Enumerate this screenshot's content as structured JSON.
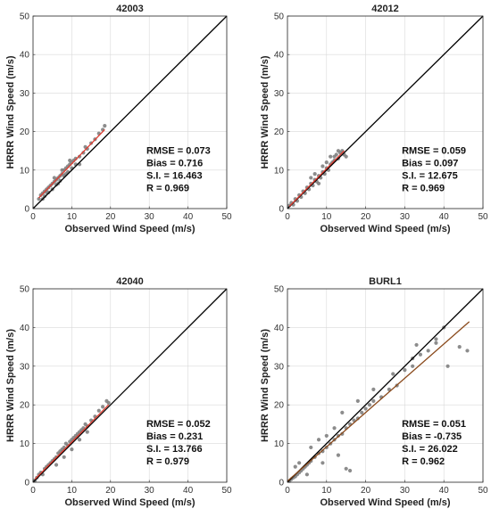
{
  "chart_data": [
    {
      "type": "scatter",
      "title": "42003",
      "xlabel": "Observed Wind Speed (m/s)",
      "ylabel": "HRRR Wind Speed (m/s)",
      "xlim": [
        0,
        50
      ],
      "ylim": [
        0,
        50
      ],
      "ticks": [
        0,
        10,
        20,
        30,
        40,
        50
      ],
      "grid": true,
      "point_color": "#7f7f7f",
      "reference_line": {
        "name": "1:1",
        "x": [
          0,
          50
        ],
        "y": [
          0,
          50
        ],
        "color": "#000000"
      },
      "fit_line": {
        "x": [
          1.5,
          18.5
        ],
        "y": [
          2.8,
          20.5
        ],
        "color": "#e03b2f"
      },
      "stats": [
        "RMSE = 0.073",
        "Bias = 0.716",
        "S.I. = 16.463",
        "R = 0.969"
      ],
      "points": [
        [
          1.5,
          2.5
        ],
        [
          2,
          3.5
        ],
        [
          2.5,
          4
        ],
        [
          3,
          3.2
        ],
        [
          3,
          4.5
        ],
        [
          3.5,
          5
        ],
        [
          4,
          4.2
        ],
        [
          4,
          5.5
        ],
        [
          4.5,
          6
        ],
        [
          5,
          5
        ],
        [
          5,
          6.5
        ],
        [
          5.5,
          7
        ],
        [
          6,
          6.2
        ],
        [
          6,
          7.5
        ],
        [
          6.5,
          8
        ],
        [
          7,
          7.2
        ],
        [
          7,
          8.5
        ],
        [
          7.5,
          9
        ],
        [
          8,
          8.5
        ],
        [
          8,
          10
        ],
        [
          8.5,
          10.5
        ],
        [
          9,
          9.5
        ],
        [
          9,
          11
        ],
        [
          9.5,
          11.5
        ],
        [
          10,
          10.5
        ],
        [
          10,
          12
        ],
        [
          10.5,
          12.5
        ],
        [
          11,
          11.5
        ],
        [
          11,
          13
        ],
        [
          12,
          13.5
        ],
        [
          13,
          14.5
        ],
        [
          14,
          15.5
        ],
        [
          15,
          17
        ],
        [
          16,
          18
        ],
        [
          17,
          19.5
        ],
        [
          18,
          20.5
        ],
        [
          18.5,
          21.5
        ],
        [
          2.5,
          2.5
        ],
        [
          3.5,
          4.2
        ],
        [
          5.5,
          8
        ],
        [
          6.5,
          6.5
        ],
        [
          7.5,
          10
        ],
        [
          8.5,
          9
        ],
        [
          9.5,
          12.5
        ],
        [
          12,
          11.5
        ],
        [
          13.5,
          16
        ]
      ]
    },
    {
      "type": "scatter",
      "title": "42012",
      "xlabel": "Observed Wind Speed (m/s)",
      "ylabel": "HRRR Wind Speed (m/s)",
      "xlim": [
        0,
        50
      ],
      "ylim": [
        0,
        50
      ],
      "ticks": [
        0,
        10,
        20,
        30,
        40,
        50
      ],
      "grid": true,
      "point_color": "#7f7f7f",
      "reference_line": {
        "name": "1:1",
        "x": [
          0,
          50
        ],
        "y": [
          0,
          50
        ],
        "color": "#000000"
      },
      "fit_line": {
        "x": [
          0.5,
          14.5
        ],
        "y": [
          0.6,
          15.0
        ],
        "color": "#e03b2f"
      },
      "stats": [
        "RMSE = 0.059",
        "Bias = 0.097",
        "S.I. = 12.675",
        "R = 0.969"
      ],
      "points": [
        [
          0.5,
          0.8
        ],
        [
          1,
          1.5
        ],
        [
          1.5,
          1
        ],
        [
          2,
          2.5
        ],
        [
          2.5,
          2
        ],
        [
          3,
          3.5
        ],
        [
          3.5,
          3
        ],
        [
          4,
          4.5
        ],
        [
          4.5,
          4
        ],
        [
          5,
          5.5
        ],
        [
          5.5,
          5
        ],
        [
          6,
          6.5
        ],
        [
          6.5,
          6
        ],
        [
          7,
          7.5
        ],
        [
          7.5,
          7
        ],
        [
          8,
          8.5
        ],
        [
          8.5,
          8
        ],
        [
          9,
          9.5
        ],
        [
          9.5,
          9
        ],
        [
          10,
          10.5
        ],
        [
          10.5,
          10
        ],
        [
          11,
          11.5
        ],
        [
          11.5,
          12
        ],
        [
          12,
          12.5
        ],
        [
          12,
          13.5
        ],
        [
          12.5,
          14
        ],
        [
          13,
          13
        ],
        [
          13,
          15
        ],
        [
          13.5,
          14.5
        ],
        [
          14,
          15
        ],
        [
          14.5,
          14
        ],
        [
          15,
          13.5
        ],
        [
          10,
          12
        ],
        [
          11,
          13.5
        ],
        [
          9,
          11
        ],
        [
          7,
          9
        ],
        [
          6,
          8
        ],
        [
          8,
          6.5
        ]
      ]
    },
    {
      "type": "scatter",
      "title": "42040",
      "xlabel": "Observed Wind Speed (m/s)",
      "ylabel": "HRRR Wind Speed (m/s)",
      "xlim": [
        0,
        50
      ],
      "ylim": [
        0,
        50
      ],
      "ticks": [
        0,
        10,
        20,
        30,
        40,
        50
      ],
      "grid": true,
      "point_color": "#7f7f7f",
      "reference_line": {
        "name": "1:1",
        "x": [
          0,
          50
        ],
        "y": [
          0,
          50
        ],
        "color": "#000000"
      },
      "fit_line": {
        "x": [
          0.5,
          19.5
        ],
        "y": [
          0.8,
          20.0
        ],
        "color": "#e03b2f"
      },
      "stats": [
        "RMSE = 0.052",
        "Bias = 0.231",
        "S.I. = 13.766",
        "R = 0.979"
      ],
      "points": [
        [
          0.5,
          0.5
        ],
        [
          1,
          1.2
        ],
        [
          1.5,
          2
        ],
        [
          2,
          2.5
        ],
        [
          2.5,
          2
        ],
        [
          3,
          3.5
        ],
        [
          3.5,
          4
        ],
        [
          4,
          4.5
        ],
        [
          4.5,
          5
        ],
        [
          5,
          5.5
        ],
        [
          5.5,
          6
        ],
        [
          6,
          6.5
        ],
        [
          6.5,
          7.5
        ],
        [
          7,
          8
        ],
        [
          7.5,
          8.5
        ],
        [
          8,
          9
        ],
        [
          8.5,
          10
        ],
        [
          9,
          9.5
        ],
        [
          9.5,
          10.5
        ],
        [
          10,
          11
        ],
        [
          10.5,
          11.5
        ],
        [
          11,
          12
        ],
        [
          11.5,
          12.5
        ],
        [
          12,
          13
        ],
        [
          12.5,
          13.5
        ],
        [
          13,
          14
        ],
        [
          13.5,
          15
        ],
        [
          14,
          14.5
        ],
        [
          15,
          16
        ],
        [
          16,
          17
        ],
        [
          17,
          18.5
        ],
        [
          18,
          19.5
        ],
        [
          19,
          21
        ],
        [
          19.5,
          20.5
        ],
        [
          8,
          6.5
        ],
        [
          10,
          8.5
        ],
        [
          12,
          11
        ],
        [
          6,
          4.5
        ],
        [
          14,
          13
        ]
      ]
    },
    {
      "type": "scatter",
      "title": "BURL1",
      "xlabel": "Observed Wind Speed (m/s)",
      "ylabel": "HRRR Wind Speed (m/s)",
      "xlim": [
        0,
        50
      ],
      "ylim": [
        0,
        50
      ],
      "ticks": [
        0,
        10,
        20,
        30,
        40,
        50
      ],
      "grid": true,
      "point_color": "#7f7f7f",
      "reference_line": {
        "name": "1:1",
        "x": [
          0,
          50
        ],
        "y": [
          0,
          50
        ],
        "color": "#000000"
      },
      "fit_line": {
        "x": [
          0,
          46.5
        ],
        "y": [
          0.3,
          41.5
        ],
        "color": "#8a4a1c"
      },
      "stats": [
        "RMSE = 0.051",
        "Bias = -0.735",
        "S.I. = 26.022",
        "R = 0.962"
      ],
      "points": [
        [
          0.5,
          0.3
        ],
        [
          1,
          0.8
        ],
        [
          1.5,
          1.2
        ],
        [
          2,
          1.5
        ],
        [
          2.5,
          2
        ],
        [
          3,
          2.5
        ],
        [
          3.5,
          3
        ],
        [
          4,
          3.5
        ],
        [
          4.5,
          4
        ],
        [
          5,
          4.5
        ],
        [
          5.5,
          5
        ],
        [
          6,
          5.5
        ],
        [
          7,
          6.5
        ],
        [
          8,
          7.5
        ],
        [
          9,
          8
        ],
        [
          10,
          9
        ],
        [
          11,
          10
        ],
        [
          12,
          11
        ],
        [
          13,
          12
        ],
        [
          14,
          12.5
        ],
        [
          15,
          14
        ],
        [
          16,
          15
        ],
        [
          17,
          16
        ],
        [
          18,
          16.5
        ],
        [
          19,
          18
        ],
        [
          20,
          19
        ],
        [
          21,
          20
        ],
        [
          22,
          21
        ],
        [
          24,
          22
        ],
        [
          26,
          24
        ],
        [
          28,
          25
        ],
        [
          30,
          29
        ],
        [
          32,
          30
        ],
        [
          34,
          33
        ],
        [
          36,
          34
        ],
        [
          38,
          36
        ],
        [
          40,
          40
        ],
        [
          41,
          30
        ],
        [
          44,
          35
        ],
        [
          46,
          34
        ],
        [
          15,
          3.5
        ],
        [
          16,
          3
        ],
        [
          33,
          35.5
        ],
        [
          2,
          4
        ],
        [
          3,
          5
        ],
        [
          6,
          9
        ],
        [
          8,
          11
        ],
        [
          10,
          12
        ],
        [
          12,
          14
        ],
        [
          14,
          18
        ],
        [
          18,
          21
        ],
        [
          22,
          24
        ],
        [
          27,
          28
        ],
        [
          32,
          32
        ],
        [
          38,
          37
        ],
        [
          5,
          2
        ],
        [
          9,
          5
        ],
        [
          13,
          7
        ]
      ]
    }
  ]
}
